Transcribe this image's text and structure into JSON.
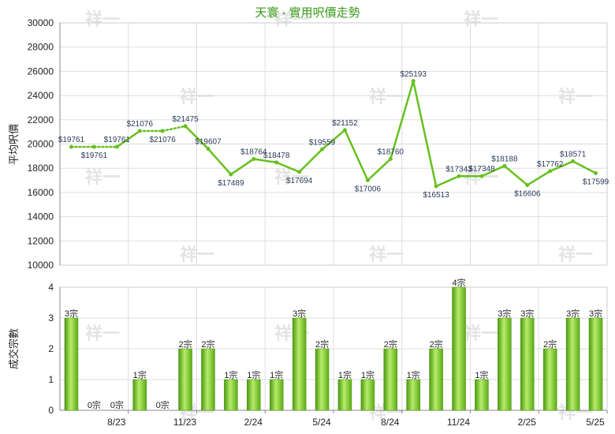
{
  "chart_data": [
    {
      "type": "line",
      "title": "天寰 - 實用呎價走勢",
      "ylabel": "平均呎價",
      "ylim": [
        10000,
        30000
      ],
      "yticks": [
        10000,
        12000,
        14000,
        16000,
        18000,
        20000,
        22000,
        24000,
        26000,
        28000,
        30000
      ],
      "grid": true,
      "series": [
        {
          "color": "#66c01e",
          "values": [
            19761,
            19761,
            19761,
            21076,
            21076,
            21475,
            19607,
            17489,
            18764,
            18478,
            17694,
            19559,
            21152,
            17006,
            18760,
            25193,
            16513,
            17343,
            17348,
            18188,
            16606,
            17762,
            18571,
            17599
          ],
          "labels": [
            "$19761",
            "$19761",
            "$19761",
            "$21076",
            "$21076",
            "$21475",
            "$19607",
            "$17489",
            "$18764",
            "$18478",
            "$17694",
            "$19559",
            "$21152",
            "$17006",
            "$18760",
            "$25193",
            "$16513",
            "$17343",
            "$17348",
            "$18188",
            "$16606",
            "$17762",
            "$18571",
            "$17599"
          ],
          "interpolated": [
            false,
            true,
            false,
            false,
            true,
            false,
            false,
            false,
            false,
            false,
            false,
            false,
            false,
            false,
            false,
            false,
            false,
            false,
            false,
            false,
            false,
            false,
            false,
            false
          ]
        }
      ]
    },
    {
      "type": "bar",
      "ylabel": "成交宗數",
      "ylim": [
        0,
        4
      ],
      "yticks": [
        0,
        1,
        2,
        3,
        4
      ],
      "grid": true,
      "series": [
        {
          "color": "#66c01e",
          "values": [
            3,
            0,
            0,
            1,
            0,
            2,
            2,
            1,
            1,
            1,
            3,
            2,
            1,
            1,
            2,
            1,
            2,
            4,
            1,
            3,
            3,
            2,
            3,
            3
          ],
          "labels": [
            "3宗",
            "0宗",
            "0宗",
            "1宗",
            "0宗",
            "2宗",
            "2宗",
            "1宗",
            "1宗",
            "1宗",
            "3宗",
            "2宗",
            "1宗",
            "1宗",
            "2宗",
            "1宗",
            "2宗",
            "4宗",
            "1宗",
            "3宗",
            "3宗",
            "2宗",
            "3宗",
            "3宗"
          ]
        }
      ],
      "xticks": [
        {
          "index": 2,
          "label": "8/23"
        },
        {
          "index": 5,
          "label": "11/23"
        },
        {
          "index": 8,
          "label": "2/24"
        },
        {
          "index": 11,
          "label": "5/24"
        },
        {
          "index": 14,
          "label": "8/24"
        },
        {
          "index": 17,
          "label": "11/24"
        },
        {
          "index": 20,
          "label": "2/25"
        },
        {
          "index": 23,
          "label": "5/25"
        }
      ]
    }
  ],
  "watermark": "祥一"
}
